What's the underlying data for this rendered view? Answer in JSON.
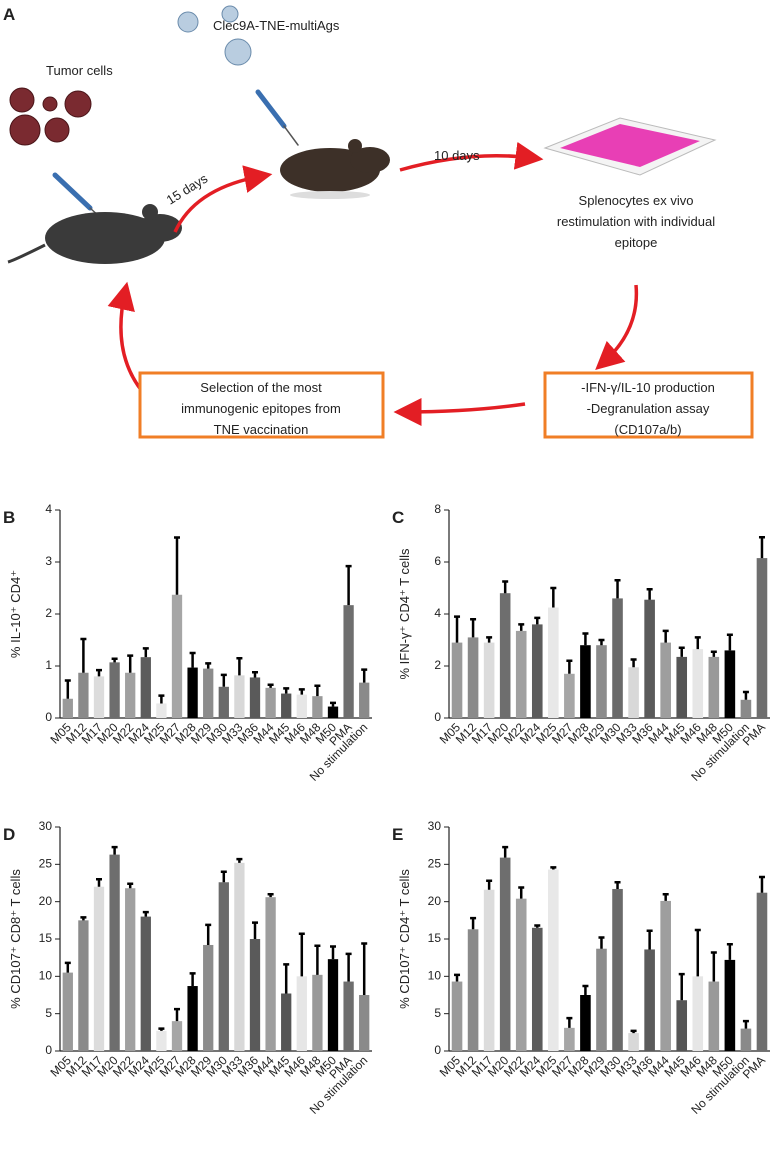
{
  "diagram": {
    "panel": "A",
    "tumor_label": "Tumor cells",
    "vaccine_label": "Clec9A-TNE-multiAgs",
    "arrow_1": "15 days",
    "arrow_2": "10 days",
    "readout_lines": [
      "Splenocytes ex vivo",
      "restimulation with individual",
      "epitope"
    ],
    "selection_lines": [
      "Selection of the most",
      "immunogenic epitopes from",
      "TNE vaccination"
    ],
    "assay_lines": [
      "-IFN-γ/IL-10 production",
      "-Degranulation assay",
      "(CD107a/b)"
    ]
  },
  "chart_data": [
    {
      "type": "bar",
      "panel": "B",
      "ylabel": "% IL-10⁺ CD4⁺",
      "categories": [
        "M05",
        "M12",
        "M17",
        "M20",
        "M22",
        "M24",
        "M25",
        "M27",
        "M28",
        "M29",
        "M30",
        "M33",
        "M36",
        "M44",
        "M45",
        "M46",
        "M48",
        "M50",
        "PMA",
        "No stimulation"
      ],
      "values": [
        0.37,
        0.87,
        0.8,
        1.07,
        0.87,
        1.17,
        0.28,
        2.37,
        0.97,
        0.95,
        0.6,
        0.82,
        0.78,
        0.58,
        0.47,
        0.45,
        0.42,
        0.22,
        2.17,
        0.68
      ],
      "errors": [
        0.35,
        0.65,
        0.12,
        0.07,
        0.33,
        0.17,
        0.15,
        1.1,
        0.28,
        0.1,
        0.23,
        0.33,
        0.1,
        0.06,
        0.1,
        0.1,
        0.2,
        0.07,
        0.75,
        0.25
      ],
      "colors": [
        "#9a9a9a",
        "#8a8a8a",
        "#dcdcdc",
        "#6e6e6e",
        "#a0a0a0",
        "#5c5c5c",
        "#e8e8e8",
        "#a6a6a6",
        "#000000",
        "#8c8c8c",
        "#6a6a6a",
        "#d8d8d8",
        "#5a5a5a",
        "#9e9e9e",
        "#555555",
        "#e6e6e6",
        "#999999",
        "#000000",
        "#6e6e6e",
        "#8a8a8a"
      ],
      "ylim": [
        0,
        4
      ],
      "yticks": [
        0,
        1,
        2,
        3,
        4
      ]
    },
    {
      "type": "bar",
      "panel": "C",
      "ylabel": "% IFN-γ⁺ CD4⁺ T cells",
      "categories": [
        "M05",
        "M12",
        "M17",
        "M20",
        "M22",
        "M24",
        "M25",
        "M27",
        "M28",
        "M29",
        "M30",
        "M33",
        "M36",
        "M44",
        "M45",
        "M46",
        "M48",
        "M50",
        "No stimulation",
        "PMA"
      ],
      "values": [
        2.9,
        3.1,
        2.9,
        4.8,
        3.35,
        3.6,
        4.25,
        1.7,
        2.8,
        2.8,
        4.6,
        1.95,
        4.55,
        2.9,
        2.35,
        2.65,
        2.35,
        2.6,
        0.7,
        6.15
      ],
      "errors": [
        1.0,
        0.7,
        0.2,
        0.45,
        0.25,
        0.25,
        0.75,
        0.5,
        0.45,
        0.2,
        0.7,
        0.3,
        0.4,
        0.45,
        0.35,
        0.45,
        0.2,
        0.6,
        0.3,
        0.8
      ],
      "colors": [
        "#9a9a9a",
        "#8a8a8a",
        "#dcdcdc",
        "#6e6e6e",
        "#a0a0a0",
        "#5c5c5c",
        "#e8e8e8",
        "#a6a6a6",
        "#000000",
        "#8c8c8c",
        "#6a6a6a",
        "#d8d8d8",
        "#5a5a5a",
        "#9e9e9e",
        "#555555",
        "#e6e6e6",
        "#999999",
        "#000000",
        "#8a8a8a",
        "#6e6e6e"
      ],
      "ylim": [
        0,
        8
      ],
      "yticks": [
        0,
        2,
        4,
        6,
        8
      ]
    },
    {
      "type": "bar",
      "panel": "D",
      "ylabel": "% CD107⁺ CD8⁺ T cells",
      "categories": [
        "M05",
        "M12",
        "M17",
        "M20",
        "M22",
        "M24",
        "M25",
        "M27",
        "M28",
        "M29",
        "M30",
        "M33",
        "M36",
        "M44",
        "M45",
        "M46",
        "M48",
        "M50",
        "PMA",
        "No stimulation"
      ],
      "values": [
        10.5,
        17.5,
        22,
        26.3,
        21.8,
        18,
        2.7,
        4,
        8.7,
        14.2,
        22.6,
        25.2,
        15,
        20.6,
        7.7,
        10,
        10.2,
        12.3,
        9.3,
        7.5
      ],
      "errors": [
        1.3,
        0.4,
        1,
        1,
        0.6,
        0.6,
        0.3,
        1.6,
        1.7,
        2.7,
        1.4,
        0.5,
        2.2,
        0.4,
        3.9,
        5.7,
        3.9,
        1.7,
        3.7,
        6.9
      ],
      "colors": [
        "#9a9a9a",
        "#8a8a8a",
        "#dcdcdc",
        "#6e6e6e",
        "#a0a0a0",
        "#5c5c5c",
        "#e8e8e8",
        "#a6a6a6",
        "#000000",
        "#8c8c8c",
        "#6a6a6a",
        "#d8d8d8",
        "#5a5a5a",
        "#9e9e9e",
        "#555555",
        "#e6e6e6",
        "#999999",
        "#000000",
        "#6e6e6e",
        "#8a8a8a"
      ],
      "ylim": [
        0,
        30
      ],
      "yticks": [
        0,
        5,
        10,
        15,
        20,
        25,
        30
      ]
    },
    {
      "type": "bar",
      "panel": "E",
      "ylabel": "% CD107⁺ CD4⁺ T cells",
      "categories": [
        "M05",
        "M12",
        "M17",
        "M20",
        "M22",
        "M24",
        "M25",
        "M27",
        "M28",
        "M29",
        "M30",
        "M33",
        "M36",
        "M44",
        "M45",
        "M46",
        "M48",
        "M50",
        "No stimulation",
        "PMA"
      ],
      "values": [
        9.3,
        16.3,
        21.6,
        25.9,
        20.4,
        16.5,
        24.3,
        3.1,
        7.5,
        13.7,
        21.7,
        2.4,
        13.6,
        20.1,
        6.8,
        10,
        9.3,
        12.2,
        3.0,
        21.2
      ],
      "errors": [
        0.9,
        1.5,
        1.2,
        1.4,
        1.5,
        0.3,
        0.3,
        1.3,
        1.2,
        1.5,
        0.9,
        0.3,
        2.5,
        0.9,
        3.5,
        6.2,
        3.9,
        2.1,
        1.0,
        2.1
      ],
      "colors": [
        "#9a9a9a",
        "#8a8a8a",
        "#dcdcdc",
        "#6e6e6e",
        "#a0a0a0",
        "#5c5c5c",
        "#e8e8e8",
        "#a6a6a6",
        "#000000",
        "#8c8c8c",
        "#6a6a6a",
        "#d8d8d8",
        "#5a5a5a",
        "#9e9e9e",
        "#555555",
        "#e6e6e6",
        "#999999",
        "#000000",
        "#8a8a8a",
        "#6e6e6e"
      ],
      "ylim": [
        0,
        30
      ],
      "yticks": [
        0,
        5,
        10,
        15,
        20,
        25,
        30
      ]
    }
  ]
}
